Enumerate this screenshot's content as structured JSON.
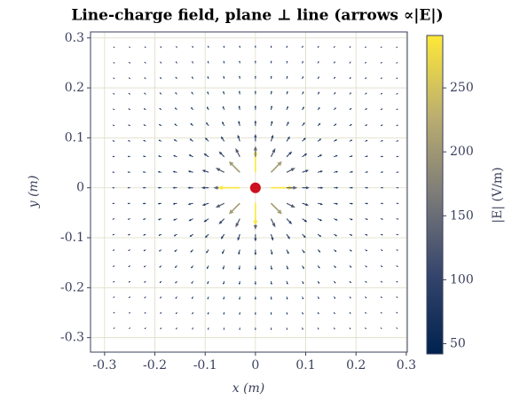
{
  "chart_data": {
    "type": "quiver",
    "title": "Line-charge field, plane ⊥ line (arrows ∝|E|)",
    "x_label": "x (m)",
    "y_label": "y (m)",
    "colorbar_label": "|E| (V/m)",
    "xlim": [
      -0.328,
      0.302
    ],
    "ylim": [
      -0.329,
      0.312
    ],
    "xticks": [
      -0.3,
      -0.2,
      -0.1,
      0.0,
      0.1,
      0.2,
      0.3
    ],
    "yticks": [
      -0.3,
      -0.2,
      -0.1,
      0.0,
      0.1,
      0.2,
      0.3
    ],
    "grid": true,
    "x": [
      -0.28,
      -0.249,
      -0.218,
      -0.187,
      -0.156,
      -0.124,
      -0.093,
      -0.062,
      -0.031,
      0,
      0.031,
      0.062,
      0.093,
      0.124,
      0.156,
      0.187,
      0.218,
      0.249,
      0.28
    ],
    "y": [
      -0.28,
      -0.249,
      -0.218,
      -0.187,
      -0.156,
      -0.124,
      -0.093,
      -0.062,
      -0.031,
      0,
      0.031,
      0.062,
      0.093,
      0.124,
      0.156,
      0.187,
      0.218,
      0.249,
      0.28
    ],
    "magnitude": [
      [
        23,
        24,
        25,
        27,
        28,
        29,
        31,
        31,
        32,
        32,
        32,
        31,
        31,
        29,
        28,
        27,
        25,
        24,
        23
      ],
      [
        24,
        26,
        27,
        29,
        31,
        32,
        34,
        35,
        36,
        36,
        36,
        35,
        34,
        32,
        31,
        29,
        27,
        26,
        24
      ],
      [
        25,
        27,
        29,
        31,
        34,
        36,
        38,
        40,
        41,
        41,
        41,
        40,
        38,
        36,
        34,
        31,
        29,
        27,
        25
      ],
      [
        27,
        29,
        31,
        34,
        37,
        40,
        43,
        46,
        48,
        48,
        48,
        46,
        43,
        40,
        37,
        34,
        31,
        29,
        27
      ],
      [
        28,
        31,
        34,
        37,
        41,
        45,
        50,
        54,
        57,
        58,
        57,
        54,
        50,
        45,
        41,
        37,
        34,
        31,
        28
      ],
      [
        29,
        32,
        36,
        40,
        45,
        51,
        58,
        65,
        70,
        73,
        70,
        65,
        58,
        51,
        45,
        40,
        36,
        32,
        29
      ],
      [
        31,
        34,
        38,
        43,
        50,
        58,
        68,
        80,
        92,
        97,
        92,
        80,
        68,
        58,
        50,
        43,
        38,
        34,
        31
      ],
      [
        31,
        35,
        40,
        46,
        54,
        65,
        80,
        103,
        130,
        145,
        130,
        103,
        80,
        65,
        54,
        46,
        40,
        35,
        31
      ],
      [
        32,
        36,
        41,
        48,
        57,
        70,
        92,
        130,
        205,
        290,
        205,
        130,
        92,
        70,
        57,
        48,
        41,
        36,
        32
      ],
      [
        32,
        36,
        41,
        48,
        58,
        73,
        97,
        145,
        290,
        null,
        290,
        145,
        97,
        73,
        58,
        48,
        41,
        36,
        32
      ],
      [
        32,
        36,
        41,
        48,
        57,
        70,
        92,
        130,
        205,
        290,
        205,
        130,
        92,
        70,
        57,
        48,
        41,
        36,
        32
      ],
      [
        31,
        35,
        40,
        46,
        54,
        65,
        80,
        103,
        130,
        145,
        130,
        103,
        80,
        65,
        54,
        46,
        40,
        35,
        31
      ],
      [
        31,
        34,
        38,
        43,
        50,
        58,
        68,
        80,
        92,
        97,
        92,
        80,
        68,
        58,
        50,
        43,
        38,
        34,
        31
      ],
      [
        29,
        32,
        36,
        40,
        45,
        51,
        58,
        65,
        70,
        73,
        70,
        65,
        58,
        51,
        45,
        40,
        36,
        32,
        29
      ],
      [
        28,
        31,
        34,
        37,
        41,
        45,
        50,
        54,
        57,
        58,
        57,
        54,
        50,
        45,
        41,
        37,
        34,
        31,
        28
      ],
      [
        27,
        29,
        31,
        34,
        37,
        40,
        43,
        46,
        48,
        48,
        48,
        46,
        43,
        40,
        37,
        34,
        31,
        29,
        27
      ],
      [
        25,
        27,
        29,
        31,
        34,
        36,
        38,
        40,
        41,
        41,
        41,
        40,
        38,
        36,
        34,
        31,
        29,
        27,
        25
      ],
      [
        24,
        26,
        27,
        29,
        31,
        32,
        34,
        35,
        36,
        36,
        36,
        35,
        34,
        32,
        31,
        29,
        27,
        26,
        24
      ],
      [
        23,
        24,
        25,
        27,
        28,
        29,
        31,
        31,
        32,
        32,
        32,
        31,
        31,
        29,
        28,
        27,
        25,
        24,
        23
      ]
    ],
    "colormap": [
      "#00224e",
      "#35456c",
      "#7c7b78",
      "#bcaf6f",
      "#fee838"
    ],
    "clim": [
      42,
      291
    ],
    "colorbar_ticks": [
      50,
      100,
      150,
      200,
      250
    ],
    "charge": {
      "x": 0,
      "y": 0,
      "color": "#cc1020"
    }
  }
}
